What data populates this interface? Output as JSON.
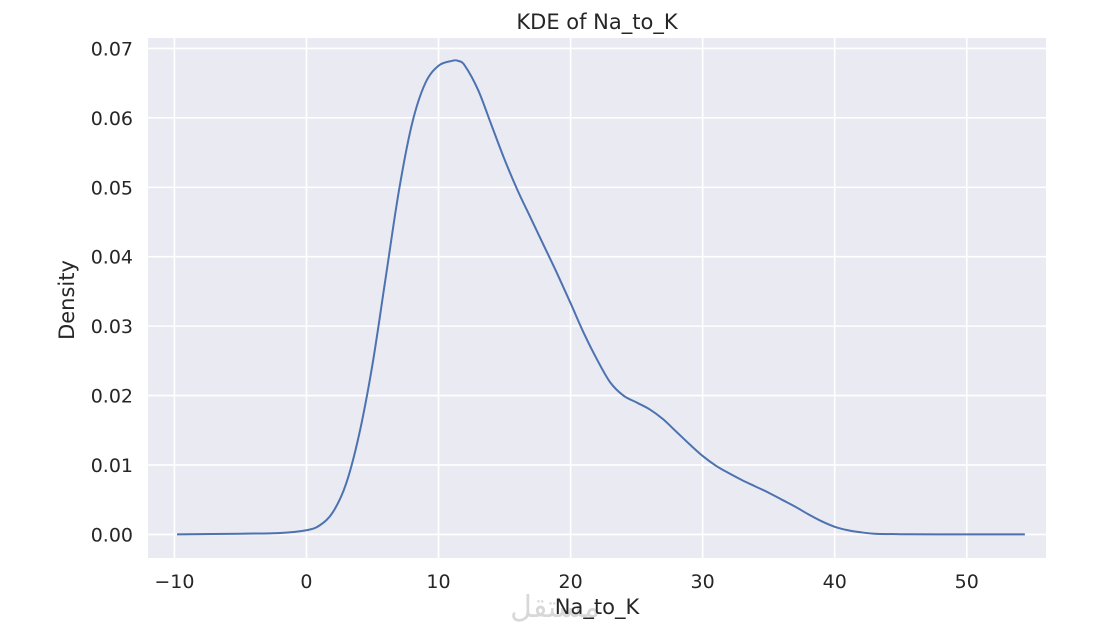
{
  "chart_data": {
    "type": "line",
    "title": "KDE of Na_to_K",
    "xlabel": "Na_to_K",
    "ylabel": "Density",
    "xlim": [
      -12,
      56
    ],
    "ylim": [
      -0.0034,
      0.0715
    ],
    "x_ticks": [
      -10,
      0,
      10,
      20,
      30,
      40,
      50
    ],
    "y_ticks": [
      0.0,
      0.01,
      0.02,
      0.03,
      0.04,
      0.05,
      0.06,
      0.07
    ],
    "x_tick_labels": [
      "−10",
      "0",
      "10",
      "20",
      "30",
      "40",
      "50"
    ],
    "y_tick_labels": [
      "0.00",
      "0.01",
      "0.02",
      "0.03",
      "0.04",
      "0.05",
      "0.06",
      "0.07"
    ],
    "grid": true,
    "background": "#eaeaf2",
    "line_color": "#4c72b0",
    "series": [
      {
        "x": [
          -9.8,
          -5,
          -2,
          0,
          1,
          2,
          3,
          4,
          5,
          6,
          7,
          8,
          9,
          10,
          11,
          11.5,
          12,
          13,
          14,
          15,
          16,
          17,
          18,
          19,
          20,
          21,
          22,
          23,
          24,
          25,
          26,
          27,
          28,
          29,
          30,
          31,
          32,
          33,
          34,
          35,
          36,
          37,
          38,
          39,
          40,
          41,
          42,
          43,
          45,
          48,
          54.4
        ],
        "y": [
          0.0,
          0.0001,
          0.0002,
          0.0006,
          0.0013,
          0.0032,
          0.0073,
          0.0145,
          0.0245,
          0.037,
          0.0495,
          0.0592,
          0.065,
          0.0675,
          0.0682,
          0.0682,
          0.0675,
          0.064,
          0.059,
          0.054,
          0.0495,
          0.0455,
          0.0415,
          0.0375,
          0.0333,
          0.029,
          0.0252,
          0.0219,
          0.02,
          0.019,
          0.018,
          0.0166,
          0.0148,
          0.013,
          0.0113,
          0.0099,
          0.0088,
          0.0078,
          0.0069,
          0.006,
          0.005,
          0.004,
          0.0029,
          0.0019,
          0.0011,
          0.0006,
          0.0003,
          0.0001,
          3e-05,
          0.0,
          0.0
        ]
      }
    ]
  },
  "watermark": "مستقل"
}
